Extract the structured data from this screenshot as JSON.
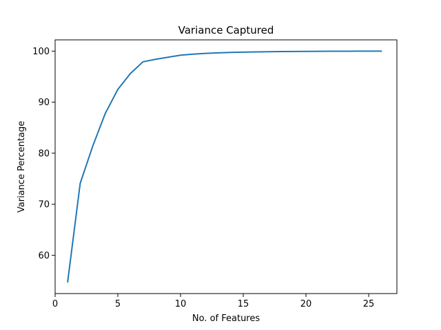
{
  "chart_data": {
    "type": "line",
    "title": "Variance Captured",
    "xlabel": "No. of Features",
    "ylabel": "Variance Percentage",
    "xlim": [
      0.0,
      27.25
    ],
    "ylim": [
      52.5,
      102.2
    ],
    "xticks": [
      0,
      5,
      10,
      15,
      20,
      25
    ],
    "yticks": [
      60,
      70,
      80,
      90,
      100
    ],
    "grid": false,
    "legend": "none",
    "series": [
      {
        "color": "#1f77b4",
        "x": [
          1,
          2,
          3,
          4,
          5,
          6,
          7,
          8,
          9,
          10,
          11,
          12,
          13,
          14,
          15,
          16,
          17,
          18,
          19,
          20,
          21,
          22,
          23,
          24,
          25,
          26
        ],
        "y": [
          54.8,
          74.1,
          81.4,
          87.8,
          92.5,
          95.6,
          97.9,
          98.4,
          98.8,
          99.2,
          99.4,
          99.55,
          99.65,
          99.75,
          99.8,
          99.85,
          99.88,
          99.91,
          99.93,
          99.95,
          99.96,
          99.97,
          99.98,
          99.99,
          100.0,
          100.0
        ]
      }
    ]
  }
}
